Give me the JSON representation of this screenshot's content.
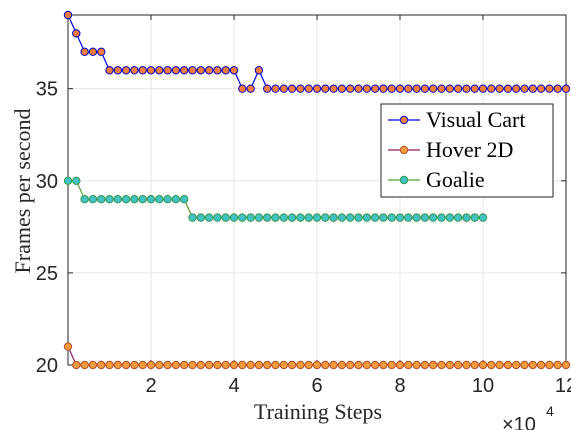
{
  "chart_data": {
    "type": "line",
    "xlabel": "Training Steps",
    "ylabel": "Frames per second",
    "x_multiplier_base": "×10",
    "x_multiplier_exponent": "4",
    "xlim": [
      0,
      120000
    ],
    "ylim": [
      20,
      39
    ],
    "x_tick_values": [
      20000,
      40000,
      60000,
      80000,
      100000,
      120000
    ],
    "x_tick_labels": [
      "2",
      "4",
      "6",
      "8",
      "10",
      "12"
    ],
    "y_tick_values": [
      20,
      25,
      30,
      35
    ],
    "y_tick_labels": [
      "20",
      "25",
      "30",
      "35"
    ],
    "grid": true,
    "legend_position": "top-right",
    "series": [
      {
        "name": "Visual Cart",
        "line_color": "#0000e6",
        "marker_face": "#f07d3c",
        "marker_edge": "#0000c8",
        "x": [
          0,
          2000,
          4000,
          6000,
          8000,
          10000,
          12000,
          14000,
          16000,
          18000,
          20000,
          22000,
          24000,
          26000,
          28000,
          30000,
          32000,
          34000,
          36000,
          38000,
          40000,
          42000,
          44000,
          46000,
          48000,
          50000,
          52000,
          54000,
          56000,
          58000,
          60000,
          62000,
          64000,
          66000,
          68000,
          70000,
          72000,
          74000,
          76000,
          78000,
          80000,
          82000,
          84000,
          86000,
          88000,
          90000,
          92000,
          94000,
          96000,
          98000,
          100000,
          102000,
          104000,
          106000,
          108000,
          110000,
          112000,
          114000,
          116000,
          118000,
          120000
        ],
        "y": [
          39,
          38,
          37,
          37,
          37,
          36,
          36,
          36,
          36,
          36,
          36,
          36,
          36,
          36,
          36,
          36,
          36,
          36,
          36,
          36,
          36,
          35,
          35,
          36,
          35,
          35,
          35,
          35,
          35,
          35,
          35,
          35,
          35,
          35,
          35,
          35,
          35,
          35,
          35,
          35,
          35,
          35,
          35,
          35,
          35,
          35,
          35,
          35,
          35,
          35,
          35,
          35,
          35,
          35,
          35,
          35,
          35,
          35,
          35,
          35,
          35
        ]
      },
      {
        "name": "Hover 2D",
        "line_color": "#8b1a6b",
        "marker_face": "#f29a3c",
        "marker_edge": "#b0502a",
        "x": [
          0,
          2000,
          4000,
          6000,
          8000,
          10000,
          12000,
          14000,
          16000,
          18000,
          20000,
          22000,
          24000,
          26000,
          28000,
          30000,
          32000,
          34000,
          36000,
          38000,
          40000,
          42000,
          44000,
          46000,
          48000,
          50000,
          52000,
          54000,
          56000,
          58000,
          60000,
          62000,
          64000,
          66000,
          68000,
          70000,
          72000,
          74000,
          76000,
          78000,
          80000,
          82000,
          84000,
          86000,
          88000,
          90000,
          92000,
          94000,
          96000,
          98000,
          100000,
          102000,
          104000,
          106000,
          108000,
          110000,
          112000,
          114000,
          116000,
          118000,
          120000
        ],
        "y": [
          21,
          20,
          20,
          20,
          20,
          20,
          20,
          20,
          20,
          20,
          20,
          20,
          20,
          20,
          20,
          20,
          20,
          20,
          20,
          20,
          20,
          20,
          20,
          20,
          20,
          20,
          20,
          20,
          20,
          20,
          20,
          20,
          20,
          20,
          20,
          20,
          20,
          20,
          20,
          20,
          20,
          20,
          20,
          20,
          20,
          20,
          20,
          20,
          20,
          20,
          20,
          20,
          20,
          20,
          20,
          20,
          20,
          20,
          20,
          20,
          20
        ]
      },
      {
        "name": "Goalie",
        "line_color": "#5aa02c",
        "marker_face": "#45c1c6",
        "marker_edge": "#2d9a4a",
        "x": [
          0,
          2000,
          4000,
          6000,
          8000,
          10000,
          12000,
          14000,
          16000,
          18000,
          20000,
          22000,
          24000,
          26000,
          28000,
          30000,
          32000,
          34000,
          36000,
          38000,
          40000,
          42000,
          44000,
          46000,
          48000,
          50000,
          52000,
          54000,
          56000,
          58000,
          60000,
          62000,
          64000,
          66000,
          68000,
          70000,
          72000,
          74000,
          76000,
          78000,
          80000,
          82000,
          84000,
          86000,
          88000,
          90000,
          92000,
          94000,
          96000,
          98000,
          100000
        ],
        "y": [
          30,
          30,
          29,
          29,
          29,
          29,
          29,
          29,
          29,
          29,
          29,
          29,
          29,
          29,
          29,
          28,
          28,
          28,
          28,
          28,
          28,
          28,
          28,
          28,
          28,
          28,
          28,
          28,
          28,
          28,
          28,
          28,
          28,
          28,
          28,
          28,
          28,
          28,
          28,
          28,
          28,
          28,
          28,
          28,
          28,
          28,
          28,
          28,
          28,
          28,
          28
        ]
      }
    ]
  }
}
